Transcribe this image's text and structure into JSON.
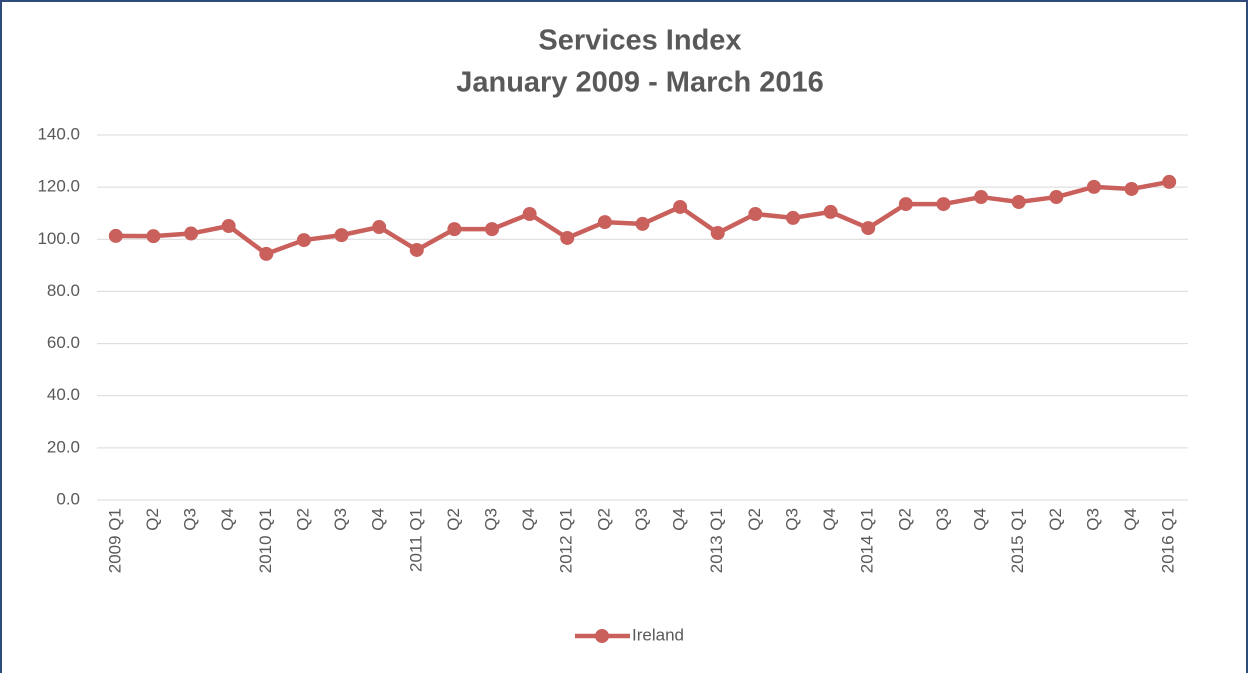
{
  "chart_data": {
    "type": "line",
    "title": "Services Index",
    "subtitle": "January 2009 - March 2016",
    "categories": [
      "2009 Q1",
      "Q2",
      "Q3",
      "Q4",
      "2010 Q1",
      "Q2",
      "Q3",
      "Q4",
      "2011 Q1",
      "Q2",
      "Q3",
      "Q4",
      "2012 Q1",
      "Q2",
      "Q3",
      "Q4",
      "2013 Q1",
      "Q2",
      "Q3",
      "Q4",
      "2014 Q1",
      "Q2",
      "Q3",
      "Q4",
      "2015 Q1",
      "Q2",
      "Q3",
      "Q4",
      "2016 Q1"
    ],
    "series": [
      {
        "name": "Ireland",
        "color": "#c9605c",
        "values": [
          101.3,
          101.2,
          102.2,
          105.1,
          94.4,
          99.7,
          101.6,
          104.7,
          95.9,
          103.9,
          103.9,
          109.7,
          100.5,
          106.6,
          105.9,
          112.4,
          102.4,
          109.7,
          108.2,
          110.5,
          104.3,
          113.5,
          113.5,
          116.2,
          114.3,
          116.2,
          120.1,
          119.3,
          122.0
        ]
      }
    ],
    "ylim": [
      0,
      140
    ],
    "yticks": [
      {
        "value": 0,
        "label": "0.0"
      },
      {
        "value": 20,
        "label": "20.0"
      },
      {
        "value": 40,
        "label": "40.0"
      },
      {
        "value": 60,
        "label": "60.0"
      },
      {
        "value": 80,
        "label": "80.0"
      },
      {
        "value": 100,
        "label": "100.0"
      },
      {
        "value": 120,
        "label": "120.0"
      },
      {
        "value": 140,
        "label": "140.0"
      }
    ],
    "grid": true,
    "legend": "bottom"
  }
}
